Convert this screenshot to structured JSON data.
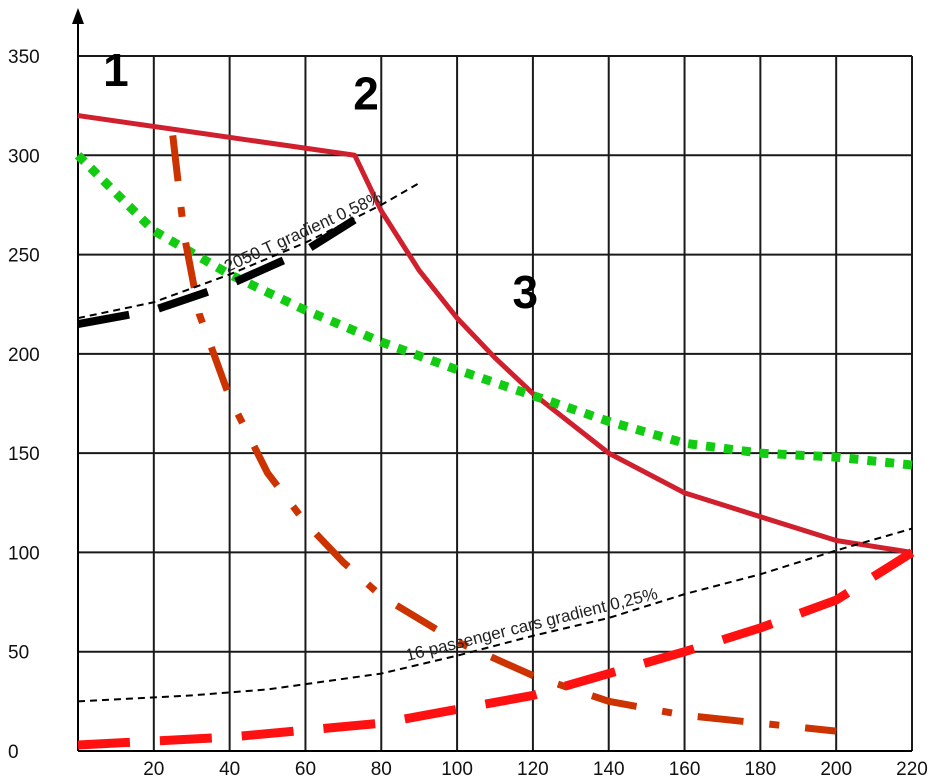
{
  "chart_data": {
    "type": "line",
    "title": "",
    "xlabel": "",
    "ylabel": "",
    "xlim": [
      0,
      220
    ],
    "ylim": [
      0,
      350
    ],
    "grid": true,
    "x_ticks": [
      20,
      40,
      60,
      80,
      100,
      120,
      140,
      160,
      180,
      200,
      220
    ],
    "y_ticks": [
      0,
      50,
      100,
      150,
      200,
      250,
      300,
      350
    ],
    "x_tick_labels": [
      "20",
      "40",
      "60",
      "80",
      "100",
      "120",
      "140",
      "160",
      "180",
      "200",
      "220"
    ],
    "y_tick_labels": [
      "0",
      "50",
      "100",
      "150",
      "200",
      "250",
      "300",
      "350"
    ],
    "markers": [
      {
        "label": "1",
        "x": 10,
        "y": 335
      },
      {
        "label": "2",
        "x": 76,
        "y": 323
      },
      {
        "label": "3",
        "x": 118,
        "y": 223
      }
    ],
    "series": [
      {
        "color": "#d0202e",
        "style": "solid",
        "width": 5,
        "points": [
          [
            0,
            320
          ],
          [
            73,
            300
          ],
          [
            80,
            272
          ],
          [
            90,
            242
          ],
          [
            100,
            218
          ],
          [
            110,
            198
          ],
          [
            120,
            180
          ],
          [
            140,
            150
          ],
          [
            160,
            130
          ],
          [
            180,
            118
          ],
          [
            200,
            106
          ],
          [
            220,
            100
          ]
        ]
      },
      {
        "color": "#11cc11",
        "style": "dotted",
        "width": 9,
        "points": [
          [
            0,
            300
          ],
          [
            20,
            262
          ],
          [
            40,
            240
          ],
          [
            60,
            222
          ],
          [
            80,
            206
          ],
          [
            100,
            192
          ],
          [
            120,
            179
          ],
          [
            140,
            166
          ],
          [
            160,
            155
          ],
          [
            180,
            150
          ],
          [
            200,
            148
          ],
          [
            220,
            144
          ]
        ]
      },
      {
        "color": "#cc3300",
        "style": "dashdot",
        "width": 7,
        "points": [
          [
            25,
            310
          ],
          [
            28,
            260
          ],
          [
            32,
            220
          ],
          [
            40,
            178
          ],
          [
            50,
            140
          ],
          [
            60,
            115
          ],
          [
            70,
            95
          ],
          [
            80,
            78
          ],
          [
            100,
            55
          ],
          [
            120,
            38
          ],
          [
            140,
            25
          ],
          [
            160,
            18
          ],
          [
            180,
            14
          ],
          [
            200,
            10
          ]
        ]
      },
      {
        "color": "#ff1111",
        "style": "longdash",
        "width": 9,
        "points": [
          [
            0,
            3
          ],
          [
            40,
            7
          ],
          [
            80,
            14
          ],
          [
            120,
            28
          ],
          [
            160,
            50
          ],
          [
            180,
            62
          ],
          [
            200,
            76
          ],
          [
            220,
            100
          ]
        ]
      },
      {
        "color": "#000000",
        "style": "longdash",
        "width": 8,
        "points": [
          [
            0,
            215
          ],
          [
            20,
            222
          ],
          [
            40,
            235
          ],
          [
            60,
            252
          ],
          [
            75,
            270
          ],
          [
            80,
            274
          ]
        ]
      },
      {
        "color": "#000000",
        "style": "finedash",
        "width": 2,
        "label": "2050 T gradient 0,58%",
        "points": [
          [
            0,
            218
          ],
          [
            20,
            226
          ],
          [
            40,
            240
          ],
          [
            60,
            256
          ],
          [
            80,
            275
          ],
          [
            90,
            286
          ]
        ]
      },
      {
        "color": "#000000",
        "style": "finedash",
        "width": 2,
        "label": "16 passenger cars gradient 0,25%",
        "points": [
          [
            0,
            25
          ],
          [
            30,
            28
          ],
          [
            50,
            31
          ],
          [
            80,
            39
          ],
          [
            100,
            48
          ],
          [
            120,
            58
          ],
          [
            140,
            67
          ],
          [
            160,
            79
          ],
          [
            180,
            89
          ],
          [
            200,
            101
          ],
          [
            220,
            112
          ]
        ]
      }
    ]
  }
}
